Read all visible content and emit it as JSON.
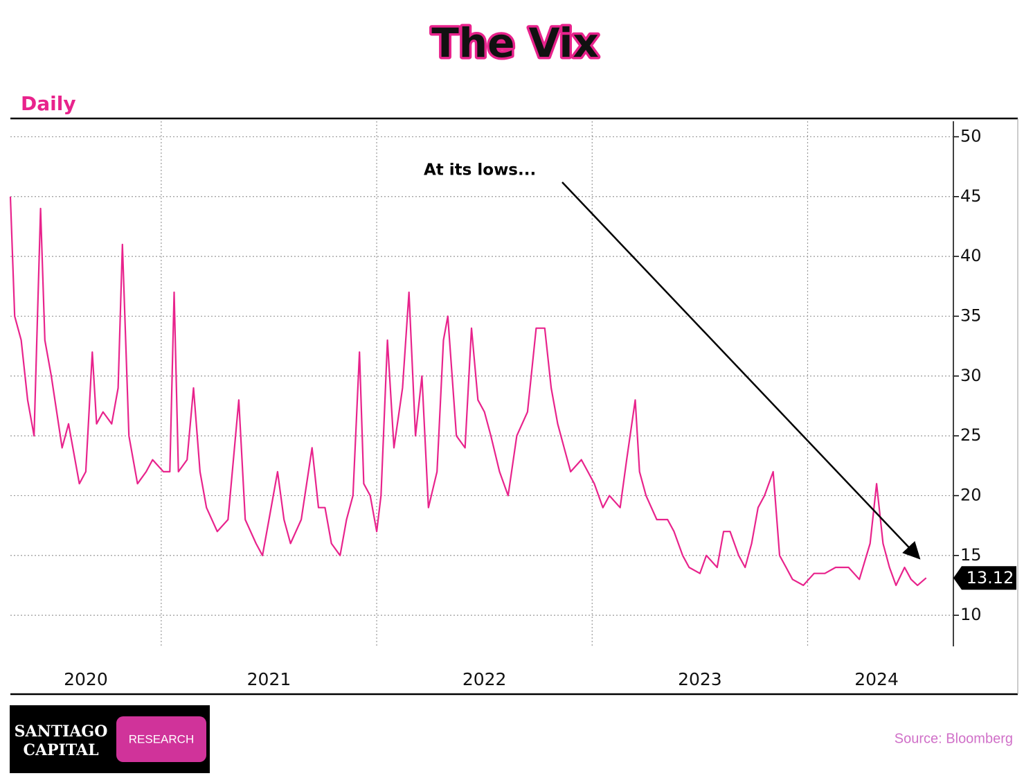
{
  "chart_data": {
    "type": "line",
    "title": "The Vix",
    "subtitle": "Daily",
    "annotation": "At its lows...",
    "source": "Source: Bloomberg",
    "logo": {
      "line1": "SANTIAGO",
      "line2": "CAPITAL",
      "badge": "RESEARCH"
    },
    "color": "#e8238c",
    "grid": true,
    "xlim": [
      2020.3,
      2024.67
    ],
    "ylim": [
      7.4,
      51.3
    ],
    "yticks": [
      10,
      15,
      20,
      25,
      30,
      35,
      40,
      45,
      50
    ],
    "xticks": [
      {
        "value": 2020.65,
        "label": "2020"
      },
      {
        "value": 2021.5,
        "label": "2021"
      },
      {
        "value": 2022.5,
        "label": "2022"
      },
      {
        "value": 2023.5,
        "label": "2023"
      },
      {
        "value": 2024.32,
        "label": "2024"
      }
    ],
    "xgrid": [
      2021,
      2022,
      2023,
      2024
    ],
    "x": [
      2020.3,
      2020.32,
      2020.35,
      2020.38,
      2020.41,
      2020.44,
      2020.46,
      2020.49,
      2020.54,
      2020.57,
      2020.62,
      2020.65,
      2020.68,
      2020.7,
      2020.73,
      2020.77,
      2020.8,
      2020.82,
      2020.85,
      2020.89,
      2020.93,
      2020.96,
      2021.01,
      2021.04,
      2021.06,
      2021.08,
      2021.12,
      2021.15,
      2021.18,
      2021.21,
      2021.26,
      2021.31,
      2021.36,
      2021.39,
      2021.44,
      2021.47,
      2021.5,
      2021.54,
      2021.57,
      2021.6,
      2021.65,
      2021.7,
      2021.73,
      2021.76,
      2021.79,
      2021.83,
      2021.86,
      2021.89,
      2021.92,
      2021.94,
      2021.97,
      2022.0,
      2022.02,
      2022.05,
      2022.08,
      2022.12,
      2022.15,
      2022.18,
      2022.21,
      2022.24,
      2022.28,
      2022.31,
      2022.33,
      2022.37,
      2022.41,
      2022.44,
      2022.47,
      2022.5,
      2022.53,
      2022.57,
      2022.61,
      2022.65,
      2022.7,
      2022.74,
      2022.78,
      2022.81,
      2022.84,
      2022.87,
      2022.9,
      2022.95,
      2022.98,
      2023.01,
      2023.05,
      2023.08,
      2023.13,
      2023.16,
      2023.2,
      2023.22,
      2023.25,
      2023.3,
      2023.35,
      2023.38,
      2023.42,
      2023.45,
      2023.5,
      2023.53,
      2023.58,
      2023.61,
      2023.64,
      2023.68,
      2023.71,
      2023.74,
      2023.77,
      2023.8,
      2023.84,
      2023.87,
      2023.9,
      2023.93,
      2023.98,
      2024.03,
      2024.08,
      2024.13,
      2024.16,
      2024.19,
      2024.24,
      2024.29,
      2024.32,
      2024.35,
      2024.38,
      2024.41,
      2024.45,
      2024.48,
      2024.51,
      2024.55
    ],
    "values": [
      45,
      35,
      33,
      28,
      25,
      44,
      33,
      30,
      24,
      26,
      21,
      22,
      32,
      26,
      27,
      26,
      29,
      41,
      25,
      21,
      22,
      23,
      22,
      22,
      37,
      22,
      23,
      29,
      22,
      19,
      17,
      18,
      28,
      18,
      16,
      15,
      18,
      22,
      18,
      16,
      18,
      24,
      19,
      19,
      16,
      15,
      18,
      20,
      32,
      21,
      20,
      17,
      20,
      33,
      24,
      29,
      37,
      25,
      30,
      19,
      22,
      33,
      35,
      25,
      24,
      34,
      28,
      27,
      25,
      22,
      20,
      25,
      27,
      34,
      34,
      29,
      26,
      24,
      22,
      23,
      22,
      21,
      19,
      20,
      19,
      23,
      28,
      22,
      20,
      18,
      18,
      17,
      15,
      14,
      13.5,
      15,
      14,
      17,
      17,
      15,
      14,
      16,
      19,
      20,
      22,
      15,
      14,
      13,
      12.5,
      13.5,
      13.5,
      14,
      14,
      14,
      13,
      16,
      21,
      16,
      14,
      12.5,
      14,
      13,
      12.5,
      13.12
    ]
  }
}
